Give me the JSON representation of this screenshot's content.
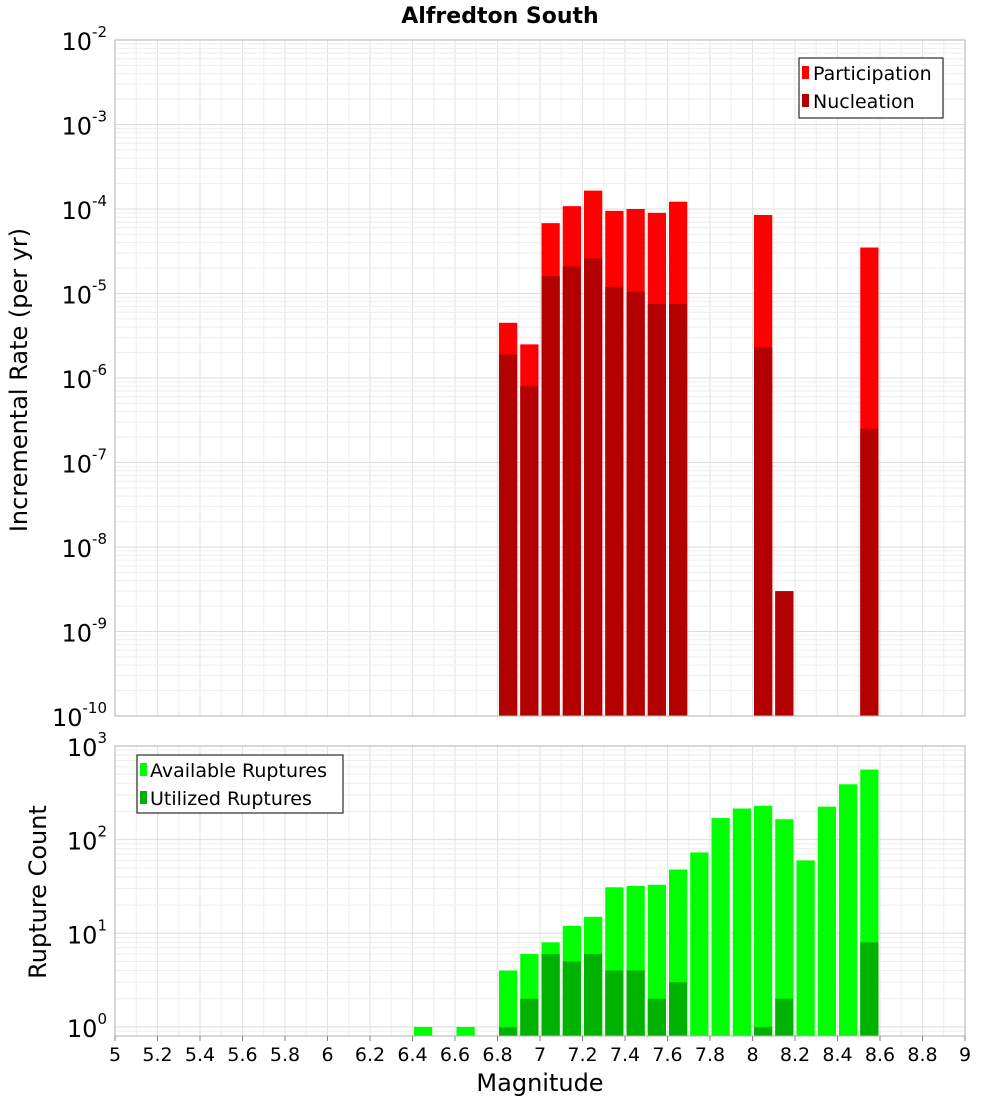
{
  "title": "Alfredton South",
  "colors": {
    "participation": "#ff0000",
    "nucleation": "#b30000",
    "available": "#00ff00",
    "utilized": "#00b200",
    "grid": "#e2e2e2",
    "frame": "#b0b0b0"
  },
  "chart_data": [
    {
      "type": "bar",
      "ylabel": "Incremental Rate (per yr)",
      "xlabel": "",
      "yscale": "log",
      "xlim": [
        5,
        9
      ],
      "ylim": [
        1e-10,
        0.01
      ],
      "y_ticks": [
        {
          "base": "10",
          "exp": "-10",
          "value": 1e-10
        },
        {
          "base": "10",
          "exp": "-9",
          "value": 1e-09
        },
        {
          "base": "10",
          "exp": "-8",
          "value": 1e-08
        },
        {
          "base": "10",
          "exp": "-7",
          "value": 1e-07
        },
        {
          "base": "10",
          "exp": "-6",
          "value": 1e-06
        },
        {
          "base": "10",
          "exp": "-5",
          "value": 1e-05
        },
        {
          "base": "10",
          "exp": "-4",
          "value": 0.0001
        },
        {
          "base": "10",
          "exp": "-3",
          "value": 0.001
        },
        {
          "base": "10",
          "exp": "-2",
          "value": 0.01
        }
      ],
      "grid": true,
      "bar_width": 0.1,
      "legend_position": "top-right",
      "series": [
        {
          "name": "Participation",
          "color": "#ff0000",
          "x": [
            6.85,
            6.95,
            7.05,
            7.15,
            7.25,
            7.35,
            7.45,
            7.55,
            7.65,
            8.05,
            8.15,
            8.55
          ],
          "values": [
            4.5e-06,
            2.5e-06,
            6.8e-05,
            0.000108,
            0.000165,
            9.5e-05,
            0.0001,
            9e-05,
            0.000122,
            8.5e-05,
            3e-09,
            3.5e-05
          ]
        },
        {
          "name": "Nucleation",
          "color": "#b30000",
          "x": [
            6.85,
            6.95,
            7.05,
            7.15,
            7.25,
            7.35,
            7.45,
            7.55,
            7.65,
            8.05,
            8.15,
            8.55
          ],
          "values": [
            1.9e-06,
            8e-07,
            1.6e-05,
            2.1e-05,
            2.6e-05,
            1.2e-05,
            1.05e-05,
            7.5e-06,
            7.5e-06,
            2.3e-06,
            3e-09,
            2.5e-07
          ]
        }
      ]
    },
    {
      "type": "bar",
      "ylabel": "Rupture Count",
      "xlabel": "Magnitude",
      "yscale": "log",
      "xlim": [
        5,
        9
      ],
      "ylim": [
        0.8,
        1000
      ],
      "x_ticks": [
        "5",
        "5.2",
        "5.4",
        "5.6",
        "5.8",
        "6",
        "6.2",
        "6.4",
        "6.6",
        "6.8",
        "7",
        "7.2",
        "7.4",
        "7.6",
        "7.8",
        "8",
        "8.2",
        "8.4",
        "8.6",
        "8.8",
        "9"
      ],
      "y_ticks": [
        {
          "base": "10",
          "exp": "0",
          "value": 1
        },
        {
          "base": "10",
          "exp": "1",
          "value": 10
        },
        {
          "base": "10",
          "exp": "2",
          "value": 100
        },
        {
          "base": "10",
          "exp": "3",
          "value": 1000
        }
      ],
      "grid": true,
      "bar_width": 0.1,
      "legend_position": "top-left",
      "series": [
        {
          "name": "Available Ruptures",
          "color": "#00ff00",
          "x": [
            6.45,
            6.65,
            6.85,
            6.95,
            7.05,
            7.15,
            7.25,
            7.35,
            7.45,
            7.55,
            7.65,
            7.75,
            7.85,
            7.95,
            8.05,
            8.15,
            8.25,
            8.35,
            8.45,
            8.55
          ],
          "values": [
            1,
            1,
            4,
            6,
            8,
            12,
            15,
            31,
            32,
            33,
            48,
            73,
            170,
            215,
            230,
            165,
            60,
            225,
            390,
            560
          ]
        },
        {
          "name": "Utilized Ruptures",
          "color": "#00b200",
          "x": [
            6.85,
            6.95,
            7.05,
            7.15,
            7.25,
            7.35,
            7.45,
            7.55,
            7.65,
            8.05,
            8.15,
            8.55
          ],
          "values": [
            1,
            2,
            6,
            5,
            6,
            4,
            4,
            2,
            3,
            1,
            2,
            8
          ]
        }
      ]
    }
  ]
}
